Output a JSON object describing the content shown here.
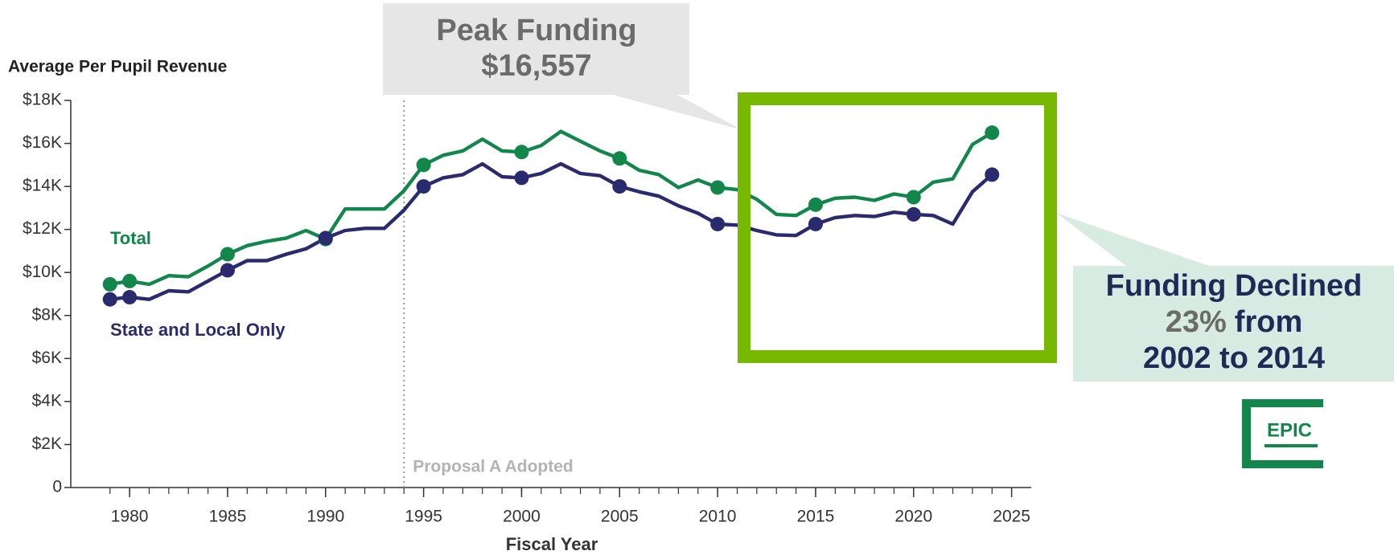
{
  "chart_data": {
    "type": "line",
    "y_axis_label": "Average Per Pupil Revenue",
    "x_axis_label": "Fiscal Year",
    "x": [
      1979,
      1980,
      1981,
      1982,
      1983,
      1984,
      1985,
      1986,
      1987,
      1988,
      1989,
      1990,
      1991,
      1992,
      1993,
      1994,
      1995,
      1996,
      1997,
      1998,
      1999,
      2000,
      2001,
      2002,
      2003,
      2004,
      2005,
      2006,
      2007,
      2008,
      2009,
      2010,
      2011,
      2012,
      2013,
      2014,
      2015,
      2016,
      2017,
      2018,
      2019,
      2020,
      2021,
      2022,
      2023,
      2024
    ],
    "series": [
      {
        "name": "Total",
        "color": "#13874b",
        "values": [
          9.45,
          9.6,
          9.45,
          9.85,
          9.8,
          10.3,
          10.85,
          11.25,
          11.45,
          11.6,
          11.95,
          11.55,
          12.95,
          12.95,
          12.95,
          13.8,
          15.0,
          15.45,
          15.65,
          16.2,
          15.65,
          15.6,
          15.9,
          16.557,
          16.1,
          15.65,
          15.3,
          14.75,
          14.55,
          13.95,
          14.3,
          13.95,
          13.85,
          13.4,
          12.7,
          12.65,
          13.15,
          13.45,
          13.5,
          13.35,
          13.65,
          13.5,
          14.2,
          14.35,
          15.95,
          16.5
        ]
      },
      {
        "name": "State and Local Only",
        "color": "#2a2a6e",
        "values": [
          8.75,
          8.85,
          8.75,
          9.15,
          9.1,
          9.6,
          10.1,
          10.55,
          10.55,
          10.85,
          11.1,
          11.6,
          11.95,
          12.05,
          12.05,
          12.9,
          14.0,
          14.4,
          14.55,
          15.05,
          14.45,
          14.4,
          14.6,
          15.05,
          14.6,
          14.5,
          14.0,
          13.75,
          13.55,
          13.1,
          12.75,
          12.25,
          12.2,
          11.95,
          11.75,
          11.72,
          12.25,
          12.55,
          12.65,
          12.6,
          12.8,
          12.7,
          12.65,
          12.25,
          13.75,
          14.55
        ]
      }
    ],
    "xlim": [
      1977,
      2026
    ],
    "xticks": [
      1980,
      1985,
      1990,
      1995,
      2000,
      2005,
      2010,
      2015,
      2020,
      2025
    ],
    "ylim": [
      0,
      18
    ],
    "yticks": [
      0,
      {
        "value": 2,
        "label": "$2K"
      },
      {
        "value": 4,
        "label": "$4K"
      },
      {
        "value": 6,
        "label": "$6K"
      },
      {
        "value": 8,
        "label": "$8K"
      },
      {
        "value": 10,
        "label": "$10K"
      },
      {
        "value": 12,
        "label": "$12K"
      },
      {
        "value": 14,
        "label": "$14K"
      },
      {
        "value": 16,
        "label": "$16K"
      },
      {
        "value": 18,
        "label": "$18K"
      }
    ],
    "reference_line": {
      "text": "Proposal A Adopted",
      "x": 1994
    },
    "callouts": {
      "peak": [
        "Peak Funding",
        "$16,557"
      ],
      "decline": {
        "line1": "Funding Declined",
        "percent": "23%",
        "from": "from",
        "line3": "2002 to 2014"
      }
    },
    "logo": "EPIC"
  }
}
